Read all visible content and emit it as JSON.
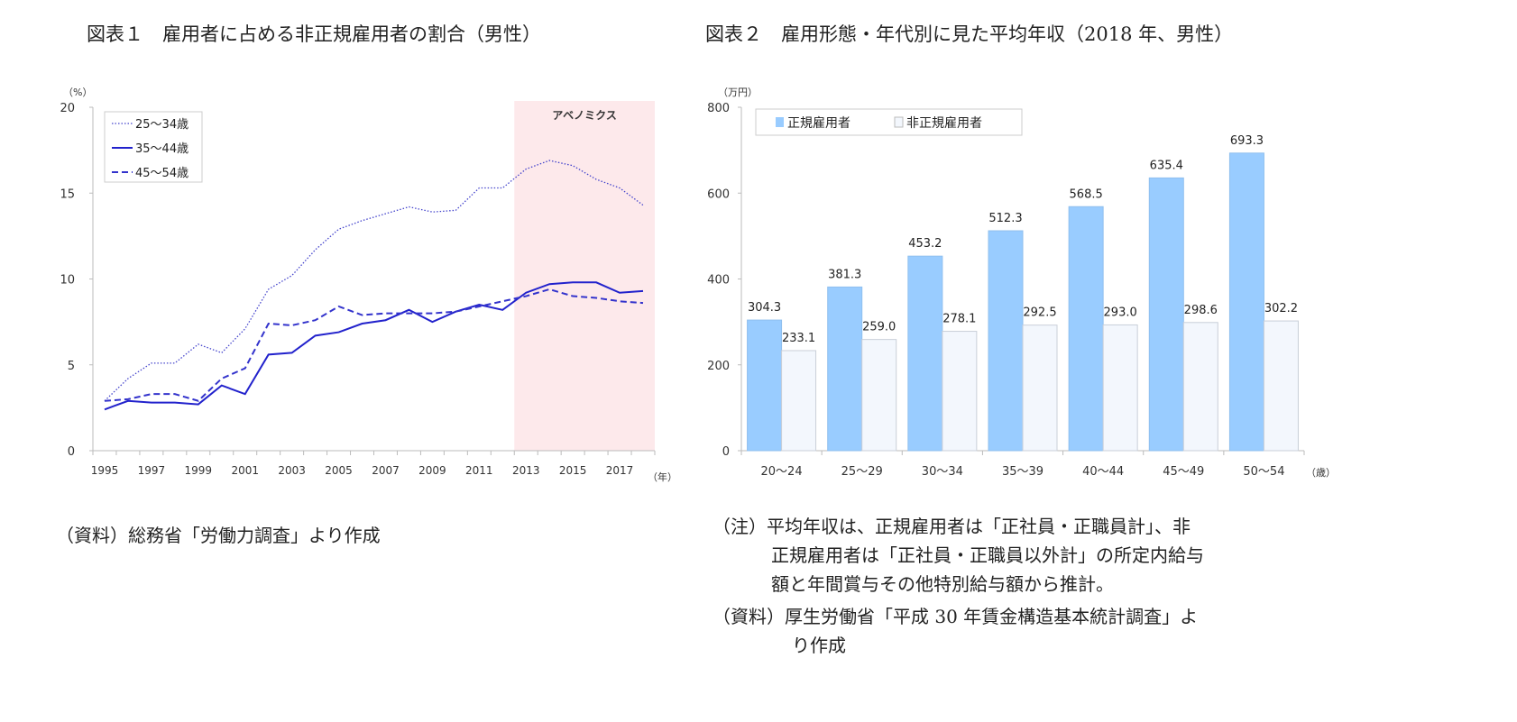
{
  "titles": {
    "fig1": "図表１　雇用者に占める非正規雇用者の割合（男性）",
    "fig2": "図表２　雇用形態・年代別に見た平均年収（2018 年、男性）"
  },
  "notes": {
    "fig1_source": "（資料）総務省「労働力調査」より作成",
    "fig2_note_line1": "（注）平均年収は、正規雇用者は「正社員・正職員計」、非",
    "fig2_note_line2": "正規雇用者は「正社員・正職員以外計」の所定内給与",
    "fig2_note_line3": "額と年間賞与その他特別給与額から推計。",
    "fig2_source_line1": "（資料）厚生労働省「平成 30 年賃金構造基本統計調査」よ",
    "fig2_source_line2": "り作成"
  },
  "chart_data": [
    {
      "type": "line",
      "ylabel": "（%）",
      "xlabel": "（年）",
      "ylim": [
        0,
        20
      ],
      "yticks": [
        0,
        5,
        10,
        15,
        20
      ],
      "xtick_labels": [
        "1995",
        "1997",
        "1999",
        "2001",
        "2003",
        "2005",
        "2007",
        "2009",
        "2011",
        "2013",
        "2015",
        "2017"
      ],
      "x": [
        1995,
        1996,
        1997,
        1998,
        1999,
        2000,
        2001,
        2002,
        2003,
        2004,
        2005,
        2006,
        2007,
        2008,
        2009,
        2010,
        2011,
        2012,
        2013,
        2014,
        2015,
        2016,
        2017,
        2018
      ],
      "annotation": {
        "label": "アベノミクス",
        "from": 2012.5,
        "to": 2018.5,
        "color": "#fde9eb"
      },
      "legend_position": "top-left",
      "grid": false,
      "series": [
        {
          "name": "25～34歳",
          "style": "dotted",
          "color": "#4444cc",
          "values": [
            2.9,
            4.2,
            5.1,
            5.1,
            6.2,
            5.7,
            7.1,
            9.4,
            10.2,
            11.7,
            12.9,
            13.4,
            13.8,
            14.2,
            13.9,
            14.0,
            15.3,
            15.3,
            16.4,
            16.9,
            16.6,
            15.8,
            15.3,
            14.3
          ]
        },
        {
          "name": "35～44歳",
          "style": "solid",
          "color": "#2222cc",
          "values": [
            2.4,
            2.9,
            2.8,
            2.8,
            2.7,
            3.8,
            3.3,
            5.6,
            5.7,
            6.7,
            6.9,
            7.4,
            7.6,
            8.2,
            7.5,
            8.1,
            8.5,
            8.2,
            9.2,
            9.7,
            9.8,
            9.8,
            9.2,
            9.3
          ]
        },
        {
          "name": "45～54歳",
          "style": "dashed",
          "color": "#3333cc",
          "values": [
            2.9,
            3.0,
            3.3,
            3.3,
            2.9,
            4.2,
            4.8,
            7.4,
            7.3,
            7.6,
            8.4,
            7.9,
            8.0,
            8.0,
            8.0,
            8.1,
            8.4,
            8.7,
            9.0,
            9.4,
            9.0,
            8.9,
            8.7,
            8.6
          ]
        }
      ]
    },
    {
      "type": "bar",
      "ylabel": "（万円）",
      "xlabel": "（歳）",
      "ylim": [
        0,
        800
      ],
      "yticks": [
        0,
        200,
        400,
        600,
        800
      ],
      "categories": [
        "20～24",
        "25～29",
        "30～34",
        "35～39",
        "40～44",
        "45～49",
        "50～54"
      ],
      "legend_position": "top-left",
      "grid": false,
      "series": [
        {
          "name": "正規雇用者",
          "color": "#99ccff",
          "values": [
            304.3,
            381.3,
            453.2,
            512.3,
            568.5,
            635.4,
            693.3
          ]
        },
        {
          "name": "非正規雇用者",
          "color": "#f3f7fd",
          "values": [
            233.1,
            259.0,
            278.1,
            292.5,
            293.0,
            298.6,
            302.2
          ]
        }
      ]
    }
  ]
}
